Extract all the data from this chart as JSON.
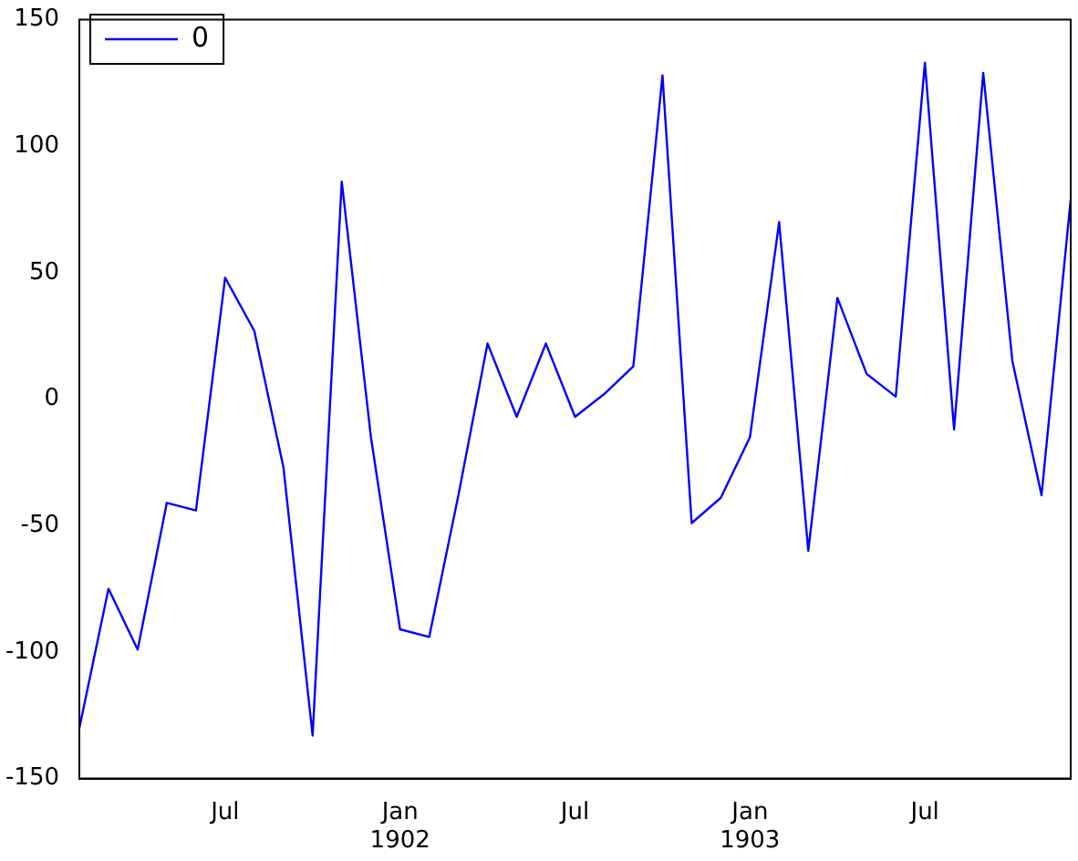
{
  "chart_data": {
    "type": "line",
    "x": [
      "1901-02",
      "1901-03",
      "1901-04",
      "1901-05",
      "1901-06",
      "1901-07",
      "1901-08",
      "1901-09",
      "1901-10",
      "1901-11",
      "1901-12",
      "1902-01",
      "1902-02",
      "1902-03",
      "1902-04",
      "1902-05",
      "1902-06",
      "1902-07",
      "1902-08",
      "1902-09",
      "1902-10",
      "1902-11",
      "1902-12",
      "1903-01",
      "1903-02",
      "1903-03",
      "1903-04",
      "1903-05",
      "1903-06",
      "1903-07",
      "1903-08",
      "1903-09",
      "1903-10",
      "1903-11",
      "1903-12"
    ],
    "series": [
      {
        "name": "0",
        "color": "#0000ff",
        "values": [
          -130,
          -75,
          -99,
          -41,
          -44,
          48,
          27,
          -27,
          -133,
          86,
          -15,
          -91,
          -94,
          -38,
          22,
          -7,
          22,
          -7,
          2,
          13,
          128,
          -49,
          -39,
          -15,
          70,
          -60,
          40,
          10,
          1,
          133,
          -12,
          129,
          15,
          -38,
          79
        ]
      }
    ],
    "xlim": [
      "1901-02",
      "1903-12"
    ],
    "xticks": [
      {
        "value": "1901-07",
        "label": "Jul"
      },
      {
        "value": "1902-01",
        "label": "Jan\n1902"
      },
      {
        "value": "1902-07",
        "label": "Jul"
      },
      {
        "value": "1903-01",
        "label": "Jan\n1903"
      },
      {
        "value": "1903-07",
        "label": "Jul"
      }
    ],
    "ylim": [
      -150,
      150
    ],
    "yticks": [
      -150,
      -100,
      -50,
      0,
      50,
      100,
      150
    ],
    "legend": "top left",
    "marker": "none",
    "line_style": "solid",
    "grid": false
  }
}
